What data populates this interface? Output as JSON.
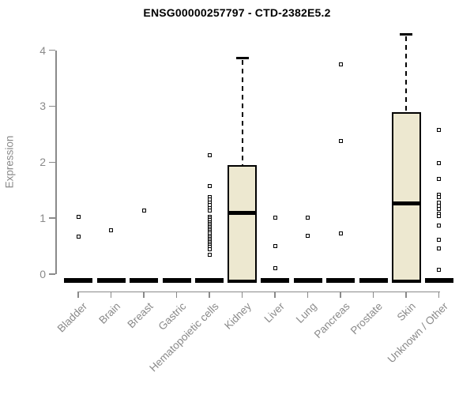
{
  "chart_data": {
    "type": "boxplot",
    "title": "ENSG00000257797 - CTD-2382E5.2",
    "xlabel": "",
    "ylabel": "Expression",
    "ylim": [
      0,
      4
    ],
    "yticks": [
      0,
      1,
      2,
      3,
      4
    ],
    "grid": false,
    "legend": "none",
    "marker_style": "open-square",
    "categories": [
      "Bladder",
      "Brain",
      "Breast",
      "Gastric",
      "Hematopoietic cells",
      "Kidney",
      "Liver",
      "Lung",
      "Pancreas",
      "Prostate",
      "Skin",
      "Unknown / Other"
    ],
    "boxes": [
      {
        "label": "Bladder",
        "q1": 0,
        "median": 0,
        "q3": 0,
        "whisker_low": 0,
        "whisker_high": 0,
        "outliers": [
          1.02,
          0.67
        ]
      },
      {
        "label": "Brain",
        "q1": 0,
        "median": 0,
        "q3": 0,
        "whisker_low": 0,
        "whisker_high": 0,
        "outliers": [
          0.79
        ]
      },
      {
        "label": "Breast",
        "q1": 0,
        "median": 0,
        "q3": 0,
        "whisker_low": 0,
        "whisker_high": 0,
        "outliers": [
          1.14
        ]
      },
      {
        "label": "Gastric",
        "q1": 0,
        "median": 0,
        "q3": 0,
        "whisker_low": 0,
        "whisker_high": 0,
        "outliers": []
      },
      {
        "label": "Hematopoietic cells",
        "q1": 0,
        "median": 0,
        "q3": 0,
        "whisker_low": 0,
        "whisker_high": 0,
        "outliers": [
          2.12,
          1.58,
          1.38,
          1.33,
          1.28,
          1.23,
          1.18,
          1.13,
          1.02,
          0.99,
          0.96,
          0.93,
          0.9,
          0.87,
          0.84,
          0.81,
          0.78,
          0.75,
          0.72,
          0.69,
          0.66,
          0.63,
          0.6,
          0.57,
          0.54,
          0.51,
          0.48,
          0.45,
          0.35
        ]
      },
      {
        "label": "Kidney",
        "q1": 0,
        "median": 1.1,
        "q3": 1.95,
        "whisker_low": 0,
        "whisker_high": 3.86,
        "outliers": []
      },
      {
        "label": "Liver",
        "q1": 0,
        "median": 0,
        "q3": 0,
        "whisker_low": 0,
        "whisker_high": 0,
        "outliers": [
          1.01,
          0.5,
          0.11
        ]
      },
      {
        "label": "Lung",
        "q1": 0,
        "median": 0,
        "q3": 0,
        "whisker_low": 0,
        "whisker_high": 0,
        "outliers": [
          1.01,
          0.68
        ]
      },
      {
        "label": "Pancreas",
        "q1": 0,
        "median": 0,
        "q3": 0,
        "whisker_low": 0,
        "whisker_high": 0,
        "outliers": [
          3.75,
          2.38,
          0.73
        ]
      },
      {
        "label": "Prostate",
        "q1": 0,
        "median": 0,
        "q3": 0,
        "whisker_low": 0,
        "whisker_high": 0,
        "outliers": []
      },
      {
        "label": "Skin",
        "q1": 0,
        "median": 1.27,
        "q3": 2.89,
        "whisker_low": 0,
        "whisker_high": 4.28,
        "outliers": []
      },
      {
        "label": "Unknown / Other",
        "q1": 0,
        "median": 0,
        "q3": 0,
        "whisker_low": 0,
        "whisker_high": 0,
        "outliers": [
          2.58,
          1.98,
          1.7,
          1.42,
          1.38,
          1.28,
          1.22,
          1.17,
          1.08,
          1.04,
          0.87,
          0.62,
          0.46,
          0.08
        ]
      }
    ],
    "colors": {
      "box_fill": "#EDE8D0",
      "box_border": "#000000",
      "median": "#000000",
      "whisker": "#000000",
      "marker": "#000000",
      "axis": "#8A8A8A",
      "tick_label": "#8A8A8A",
      "title": "#000000",
      "background": "#FFFFFF"
    }
  }
}
